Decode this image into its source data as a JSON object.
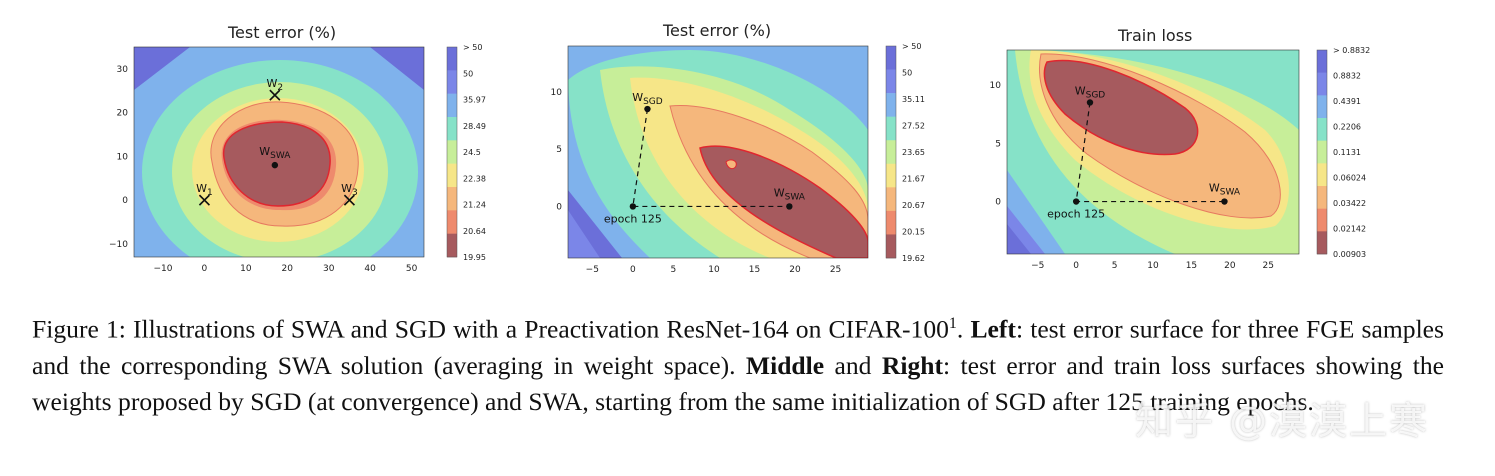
{
  "figure": {
    "panels": [
      {
        "title": "Test error (%)",
        "x_ticks": [
          "−10",
          "0",
          "10",
          "20",
          "30",
          "40",
          "50"
        ],
        "y_ticks": [
          "30",
          "20",
          "10",
          "0",
          "−10"
        ],
        "colorbar_labels": [
          "> 50",
          "50",
          "35.97",
          "28.49",
          "24.5",
          "22.38",
          "21.24",
          "20.64",
          "19.95"
        ],
        "points": [
          {
            "label": "W",
            "sub": "SWA",
            "x": 17,
            "y": 8,
            "marker": "dot"
          },
          {
            "label": "W",
            "sub": "1",
            "x": 0,
            "y": 0,
            "marker": "cross"
          },
          {
            "label": "W",
            "sub": "2",
            "x": 17,
            "y": 24,
            "marker": "cross"
          },
          {
            "label": "W",
            "sub": "3",
            "x": 35,
            "y": 0,
            "marker": "cross"
          }
        ]
      },
      {
        "title": "Test error (%)",
        "x_ticks": [
          "−5",
          "0",
          "5",
          "10",
          "15",
          "20",
          "25"
        ],
        "y_ticks": [
          "10",
          "5",
          "0"
        ],
        "colorbar_labels": [
          "> 50",
          "50",
          "35.11",
          "27.52",
          "23.65",
          "21.67",
          "20.67",
          "20.15",
          "19.62"
        ],
        "points": [
          {
            "label": "W",
            "sub": "SGD",
            "x": 1.8,
            "y": 8.5,
            "marker": "dot"
          },
          {
            "label": "epoch 125",
            "sub": "",
            "x": 0,
            "y": 0,
            "marker": "dot"
          },
          {
            "label": "W",
            "sub": "SWA",
            "x": 19.3,
            "y": 0,
            "marker": "dot"
          }
        ]
      },
      {
        "title": "Train loss",
        "x_ticks": [
          "−5",
          "0",
          "5",
          "10",
          "15",
          "20",
          "25"
        ],
        "y_ticks": [
          "10",
          "5",
          "0"
        ],
        "colorbar_labels": [
          "> 0.8832",
          "0.8832",
          "0.4391",
          "0.2206",
          "0.1131",
          "0.06024",
          "0.03422",
          "0.02142",
          "0.00903"
        ],
        "points": [
          {
            "label": "W",
            "sub": "SGD",
            "x": 1.8,
            "y": 8.5,
            "marker": "dot"
          },
          {
            "label": "epoch 125",
            "sub": "",
            "x": 0,
            "y": 0,
            "marker": "dot"
          },
          {
            "label": "W",
            "sub": "SWA",
            "x": 19.3,
            "y": 0,
            "marker": "dot"
          }
        ]
      }
    ],
    "colormap": [
      "#6b6fd9",
      "#7b86e8",
      "#7fb2ec",
      "#86e2c8",
      "#c7ee99",
      "#f6e688",
      "#f5b77c",
      "#ee8a6d",
      "#a65a5e"
    ]
  },
  "caption": {
    "prefix": "Figure 1: Illustrations of SWA and SGD with a Preactivation ResNet-164 on CIFAR-100",
    "footnote": "1",
    "after_footnote": ". ",
    "left_label": "Left",
    "left_text": ": test error surface for three FGE samples and the corresponding SWA solution (averaging in weight space). ",
    "middle_label": "Middle",
    "and_word": " and ",
    "right_label": "Right",
    "right_text": ": test error and train loss surfaces showing the weights proposed by SGD (at convergence) and SWA, starting from the same initialization of SGD after 125 training epochs."
  },
  "watermark": "知乎 @漠漠上寒"
}
